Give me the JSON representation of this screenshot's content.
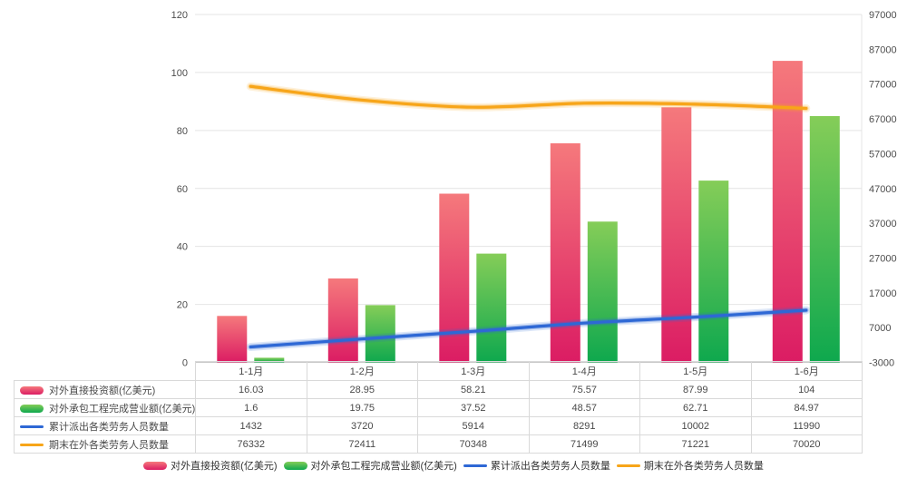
{
  "chart_data": {
    "type": "combo",
    "categories": [
      "1-1月",
      "1-2月",
      "1-3月",
      "1-4月",
      "1-5月",
      "1-6月"
    ],
    "series": [
      {
        "name": "对外直接投资额(亿美元)",
        "type": "bar",
        "axis": "left",
        "values": [
          16.03,
          28.95,
          58.21,
          75.57,
          87.99,
          104
        ],
        "display_values": [
          "16.03",
          "28.95",
          "58.21",
          "75.57",
          "87.99",
          "104"
        ],
        "color_top": "#F5797C",
        "color_bottom": "#DB1C63",
        "swatch_kind": "bar",
        "key": "outbound-direct-investment"
      },
      {
        "name": "对外承包工程完成营业额(亿美元)",
        "type": "bar",
        "axis": "left",
        "values": [
          1.6,
          19.75,
          37.52,
          48.57,
          62.71,
          84.97
        ],
        "display_values": [
          "1.6",
          "19.75",
          "37.52",
          "48.57",
          "62.71",
          "84.97"
        ],
        "color_top": "#85CD58",
        "color_bottom": "#0EA84E",
        "swatch_kind": "bar",
        "key": "contracted-projects-revenue"
      },
      {
        "name": "累计派出各类劳务人员数量",
        "type": "line",
        "axis": "right",
        "values": [
          1432,
          3720,
          5914,
          8291,
          10002,
          11990
        ],
        "display_values": [
          "1432",
          "3720",
          "5914",
          "8291",
          "10002",
          "11990"
        ],
        "color": "#2E68D5",
        "swatch_kind": "line",
        "key": "cumulative-dispatched-workers"
      },
      {
        "name": "期末在外各类劳务人员数量",
        "type": "line",
        "axis": "right",
        "values": [
          76332,
          72411,
          70348,
          71499,
          71221,
          70020
        ],
        "display_values": [
          "76332",
          "72411",
          "70348",
          "71499",
          "71221",
          "70020"
        ],
        "color": "#F7A519",
        "swatch_kind": "line",
        "key": "workers-abroad-period-end"
      }
    ],
    "left_axis": {
      "min": 0,
      "max": 120,
      "step": 20,
      "tick_labels": [
        "0",
        "20",
        "40",
        "60",
        "80",
        "100",
        "120"
      ]
    },
    "right_axis": {
      "min": -3000,
      "max": 97000,
      "step": 10000,
      "tick_labels": [
        "-3000",
        "7000",
        "17000",
        "27000",
        "37000",
        "47000",
        "57000",
        "67000",
        "77000",
        "87000",
        "97000"
      ]
    },
    "title": "",
    "xlabel": "",
    "ylabel": "",
    "grid": true,
    "legend_position": "bottom"
  },
  "style_colors": {
    "grid_line": "#e4e4e4",
    "axis_line": "#c9c9c9",
    "axis_label": "#4d4d4d",
    "table_border": "#d9d9d9",
    "table_text": "#4a4a4a",
    "legend_text": "#333333"
  }
}
